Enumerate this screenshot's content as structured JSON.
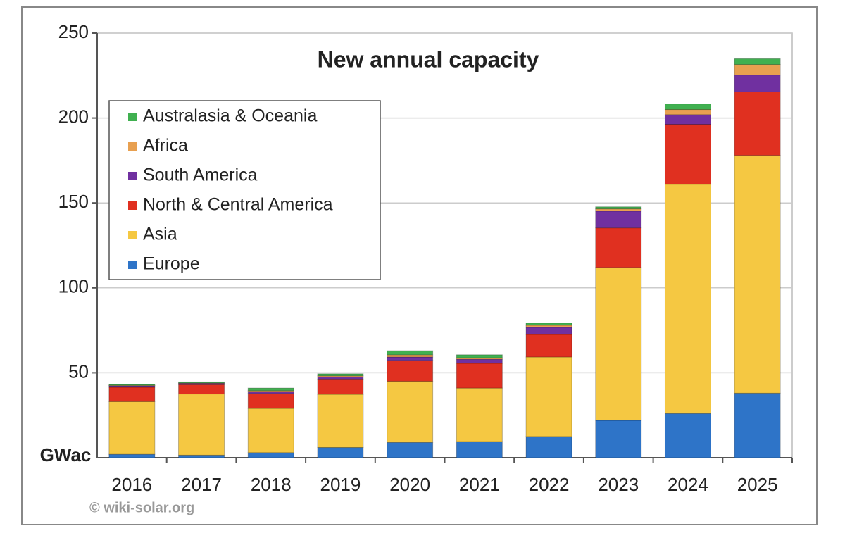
{
  "chart_data": {
    "type": "stacked-bar",
    "title": "New annual capacity",
    "y_label": "GWac",
    "source": "© wiki-solar.org",
    "categories": [
      "2016",
      "2017",
      "2018",
      "2019",
      "2020",
      "2021",
      "2022",
      "2023",
      "2024",
      "2025"
    ],
    "series": [
      {
        "name": "Europe",
        "color": "#2e74c8",
        "values": [
          2,
          1.5,
          3,
          6,
          9,
          9.5,
          12.5,
          22,
          26,
          38
        ]
      },
      {
        "name": "Asia",
        "color": "#f5c842",
        "values": [
          31,
          36,
          26,
          31.3,
          36,
          31.5,
          46.8,
          90,
          135,
          140
        ]
      },
      {
        "name": "North & Central America",
        "color": "#e03020",
        "values": [
          8.5,
          5.5,
          8.8,
          9,
          12.3,
          14.6,
          13.3,
          23.3,
          35.3,
          37.4
        ]
      },
      {
        "name": "South America",
        "color": "#7030a0",
        "values": [
          0.8,
          0.8,
          1.2,
          1.2,
          2,
          2.4,
          4.2,
          9.9,
          5.7,
          9.9
        ]
      },
      {
        "name": "Africa",
        "color": "#e8a050",
        "values": [
          0.3,
          0.2,
          0.5,
          0.7,
          1.3,
          0.8,
          1.2,
          1.3,
          3,
          6.2
        ]
      },
      {
        "name": "Australasia & Oceania",
        "color": "#40b050",
        "values": [
          0.5,
          0.6,
          1.5,
          1.2,
          2.4,
          1.8,
          1.3,
          1.2,
          3.3,
          3.4
        ]
      }
    ],
    "ylim": [
      0,
      250
    ],
    "yticks": [
      50,
      100,
      150,
      200,
      250
    ],
    "grid": true,
    "legend": "upper-left"
  }
}
